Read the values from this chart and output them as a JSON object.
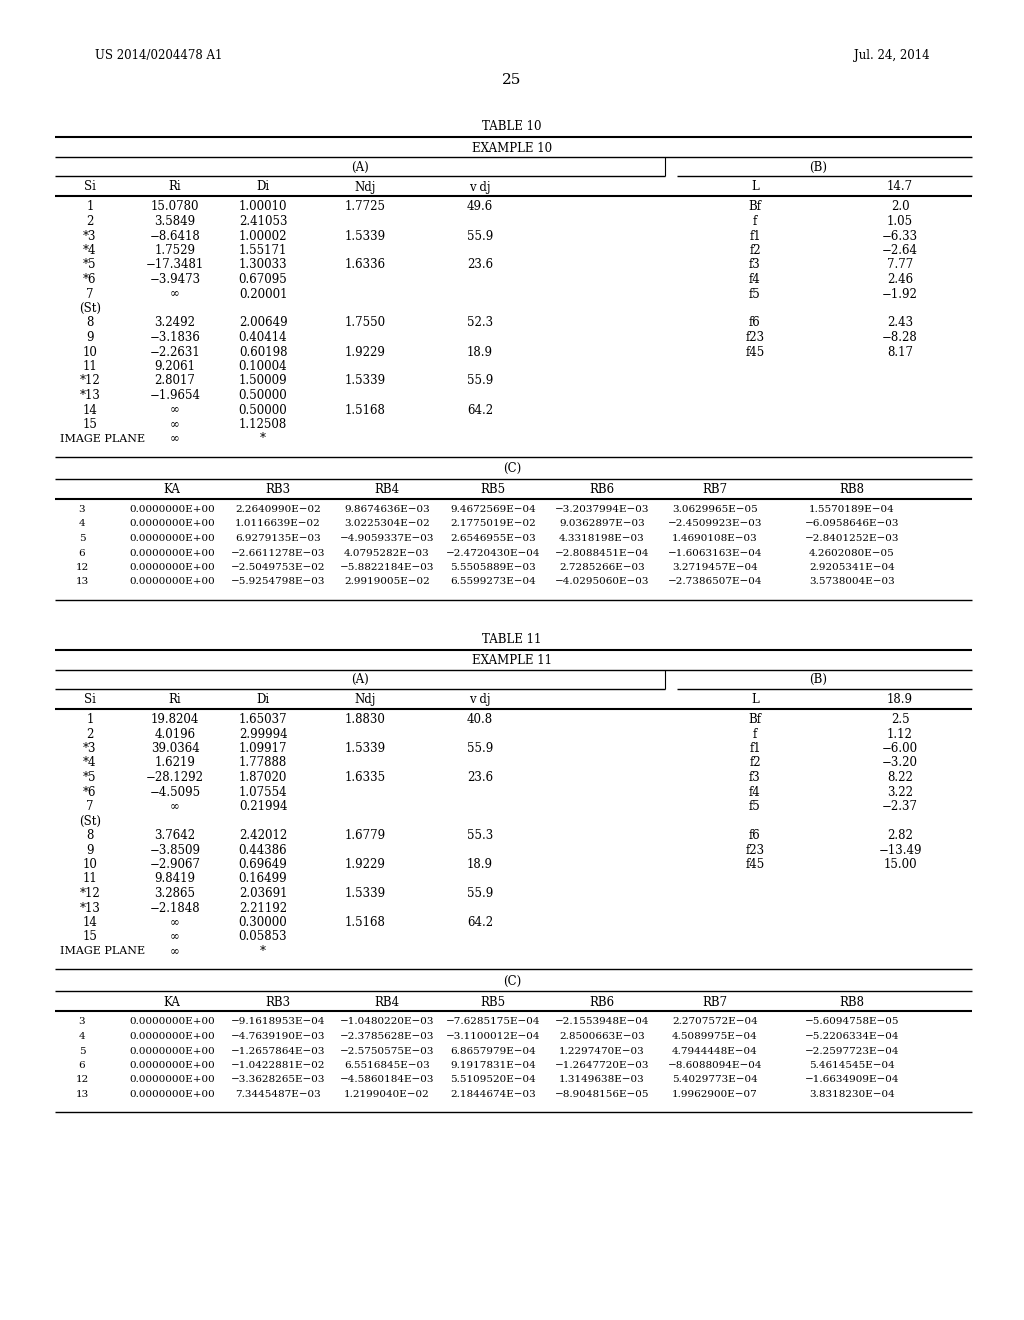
{
  "header_left": "US 2014/0204478 A1",
  "header_right": "Jul. 24, 2014",
  "page_number": "25",
  "table10": {
    "title": "TABLE 10",
    "example": "EXAMPLE 10",
    "section_A_header": "(A)",
    "section_B_header": "(B)",
    "col_headers_AB": [
      "Si",
      "Ri",
      "Di",
      "Ndj",
      "v dj",
      "L",
      "14.7"
    ],
    "rows_AB": [
      [
        "1",
        "15.0780",
        "1.00010",
        "1.7725",
        "49.6",
        "Bf",
        "2.0"
      ],
      [
        "2",
        "3.5849",
        "2.41053",
        "",
        "",
        "f",
        "1.05"
      ],
      [
        "*3",
        "−8.6418",
        "1.00002",
        "1.5339",
        "55.9",
        "f1",
        "−6.33"
      ],
      [
        "*4",
        "1.7529",
        "1.55171",
        "",
        "",
        "f2",
        "−2.64"
      ],
      [
        "*5",
        "−17.3481",
        "1.30033",
        "1.6336",
        "23.6",
        "f3",
        "7.77"
      ],
      [
        "*6",
        "−3.9473",
        "0.67095",
        "",
        "",
        "f4",
        "2.46"
      ],
      [
        "7",
        "∞",
        "0.20001",
        "",
        "",
        "f5",
        "−1.92"
      ],
      [
        "(St)",
        "",
        "",
        "",
        "",
        "",
        ""
      ],
      [
        "8",
        "3.2492",
        "2.00649",
        "1.7550",
        "52.3",
        "f6",
        "2.43"
      ],
      [
        "9",
        "−3.1836",
        "0.40414",
        "",
        "",
        "f23",
        "−8.28"
      ],
      [
        "10",
        "−2.2631",
        "0.60198",
        "1.9229",
        "18.9",
        "f45",
        "8.17"
      ],
      [
        "11",
        "9.2061",
        "0.10004",
        "",
        "",
        "",
        ""
      ],
      [
        "*12",
        "2.8017",
        "1.50009",
        "1.5339",
        "55.9",
        "",
        ""
      ],
      [
        "*13",
        "−1.9654",
        "0.50000",
        "",
        "",
        "",
        ""
      ],
      [
        "14",
        "∞",
        "0.50000",
        "1.5168",
        "64.2",
        "",
        ""
      ],
      [
        "15",
        "∞",
        "1.12508",
        "",
        "",
        "",
        ""
      ],
      [
        "IMAGE PLANE",
        "∞",
        "*",
        "",
        "",
        "",
        ""
      ]
    ],
    "section_C_header": "(C)",
    "col_headers_C": [
      "",
      "KA",
      "RB3",
      "RB4",
      "RB5",
      "RB6",
      "RB7",
      "RB8"
    ],
    "rows_C": [
      [
        "3",
        "0.0000000E+00",
        "2.2640990E−02",
        "9.8674636E−03",
        "9.4672569E−04",
        "−3.2037994E−03",
        "3.0629965E−05",
        "1.5570189E−04"
      ],
      [
        "4",
        "0.0000000E+00",
        "1.0116639E−02",
        "3.0225304E−02",
        "2.1775019E−02",
        "9.0362897E−03",
        "−2.4509923E−03",
        "−6.0958646E−03"
      ],
      [
        "5",
        "0.0000000E+00",
        "6.9279135E−03",
        "−4.9059337E−03",
        "2.6546955E−03",
        "4.3318198E−03",
        "1.4690108E−03",
        "−2.8401252E−03"
      ],
      [
        "6",
        "0.0000000E+00",
        "−2.6611278E−03",
        "4.0795282E−03",
        "−2.4720430E−04",
        "−2.8088451E−04",
        "−1.6063163E−04",
        "4.2602080E−05"
      ],
      [
        "12",
        "0.0000000E+00",
        "−2.5049753E−02",
        "−5.8822184E−03",
        "5.5505889E−03",
        "2.7285266E−03",
        "3.2719457E−04",
        "2.9205341E−04"
      ],
      [
        "13",
        "0.0000000E+00",
        "−5.9254798E−03",
        "2.9919005E−02",
        "6.5599273E−04",
        "−4.0295060E−03",
        "−2.7386507E−04",
        "3.5738004E−03"
      ]
    ]
  },
  "table11": {
    "title": "TABLE 11",
    "example": "EXAMPLE 11",
    "section_A_header": "(A)",
    "section_B_header": "(B)",
    "col_headers_AB": [
      "Si",
      "Ri",
      "Di",
      "Ndj",
      "v dj",
      "L",
      "18.9"
    ],
    "rows_AB": [
      [
        "1",
        "19.8204",
        "1.65037",
        "1.8830",
        "40.8",
        "Bf",
        "2.5"
      ],
      [
        "2",
        "4.0196",
        "2.99994",
        "",
        "",
        "f",
        "1.12"
      ],
      [
        "*3",
        "39.0364",
        "1.09917",
        "1.5339",
        "55.9",
        "f1",
        "−6.00"
      ],
      [
        "*4",
        "1.6219",
        "1.77888",
        "",
        "",
        "f2",
        "−3.20"
      ],
      [
        "*5",
        "−28.1292",
        "1.87020",
        "1.6335",
        "23.6",
        "f3",
        "8.22"
      ],
      [
        "*6",
        "−4.5095",
        "1.07554",
        "",
        "",
        "f4",
        "3.22"
      ],
      [
        "7",
        "∞",
        "0.21994",
        "",
        "",
        "f5",
        "−2.37"
      ],
      [
        "(St)",
        "",
        "",
        "",
        "",
        "",
        ""
      ],
      [
        "8",
        "3.7642",
        "2.42012",
        "1.6779",
        "55.3",
        "f6",
        "2.82"
      ],
      [
        "9",
        "−3.8509",
        "0.44386",
        "",
        "",
        "f23",
        "−13.49"
      ],
      [
        "10",
        "−2.9067",
        "0.69649",
        "1.9229",
        "18.9",
        "f45",
        "15.00"
      ],
      [
        "11",
        "9.8419",
        "0.16499",
        "",
        "",
        "",
        ""
      ],
      [
        "*12",
        "3.2865",
        "2.03691",
        "1.5339",
        "55.9",
        "",
        ""
      ],
      [
        "*13",
        "−2.1848",
        "2.21192",
        "",
        "",
        "",
        ""
      ],
      [
        "14",
        "∞",
        "0.30000",
        "1.5168",
        "64.2",
        "",
        ""
      ],
      [
        "15",
        "∞",
        "0.05853",
        "",
        "",
        "",
        ""
      ],
      [
        "IMAGE PLANE",
        "∞",
        "*",
        "",
        "",
        "",
        ""
      ]
    ],
    "section_C_header": "(C)",
    "col_headers_C": [
      "",
      "KA",
      "RB3",
      "RB4",
      "RB5",
      "RB6",
      "RB7",
      "RB8"
    ],
    "rows_C": [
      [
        "3",
        "0.0000000E+00",
        "−9.1618953E−04",
        "−1.0480220E−03",
        "−7.6285175E−04",
        "−2.1553948E−04",
        "2.2707572E−04",
        "−5.6094758E−05"
      ],
      [
        "4",
        "0.0000000E+00",
        "−4.7639190E−03",
        "−2.3785628E−03",
        "−3.1100012E−04",
        "2.8500663E−03",
        "4.5089975E−04",
        "−5.2206334E−04"
      ],
      [
        "5",
        "0.0000000E+00",
        "−1.2657864E−03",
        "−2.5750575E−03",
        "6.8657979E−04",
        "1.2297470E−03",
        "4.7944448E−04",
        "−2.2597723E−04"
      ],
      [
        "6",
        "0.0000000E+00",
        "−1.0422881E−02",
        "6.5516845E−03",
        "9.1917831E−04",
        "−1.2647720E−03",
        "−8.6088094E−04",
        "5.4614545E−04"
      ],
      [
        "12",
        "0.0000000E+00",
        "−3.3628265E−03",
        "−4.5860184E−03",
        "5.5109520E−04",
        "1.3149638E−03",
        "5.4029773E−04",
        "−1.6634909E−04"
      ],
      [
        "13",
        "0.0000000E+00",
        "7.3445487E−03",
        "1.2199040E−02",
        "2.1844674E−03",
        "−8.9048156E−05",
        "1.9962900E−07",
        "3.8318230E−04"
      ]
    ]
  }
}
